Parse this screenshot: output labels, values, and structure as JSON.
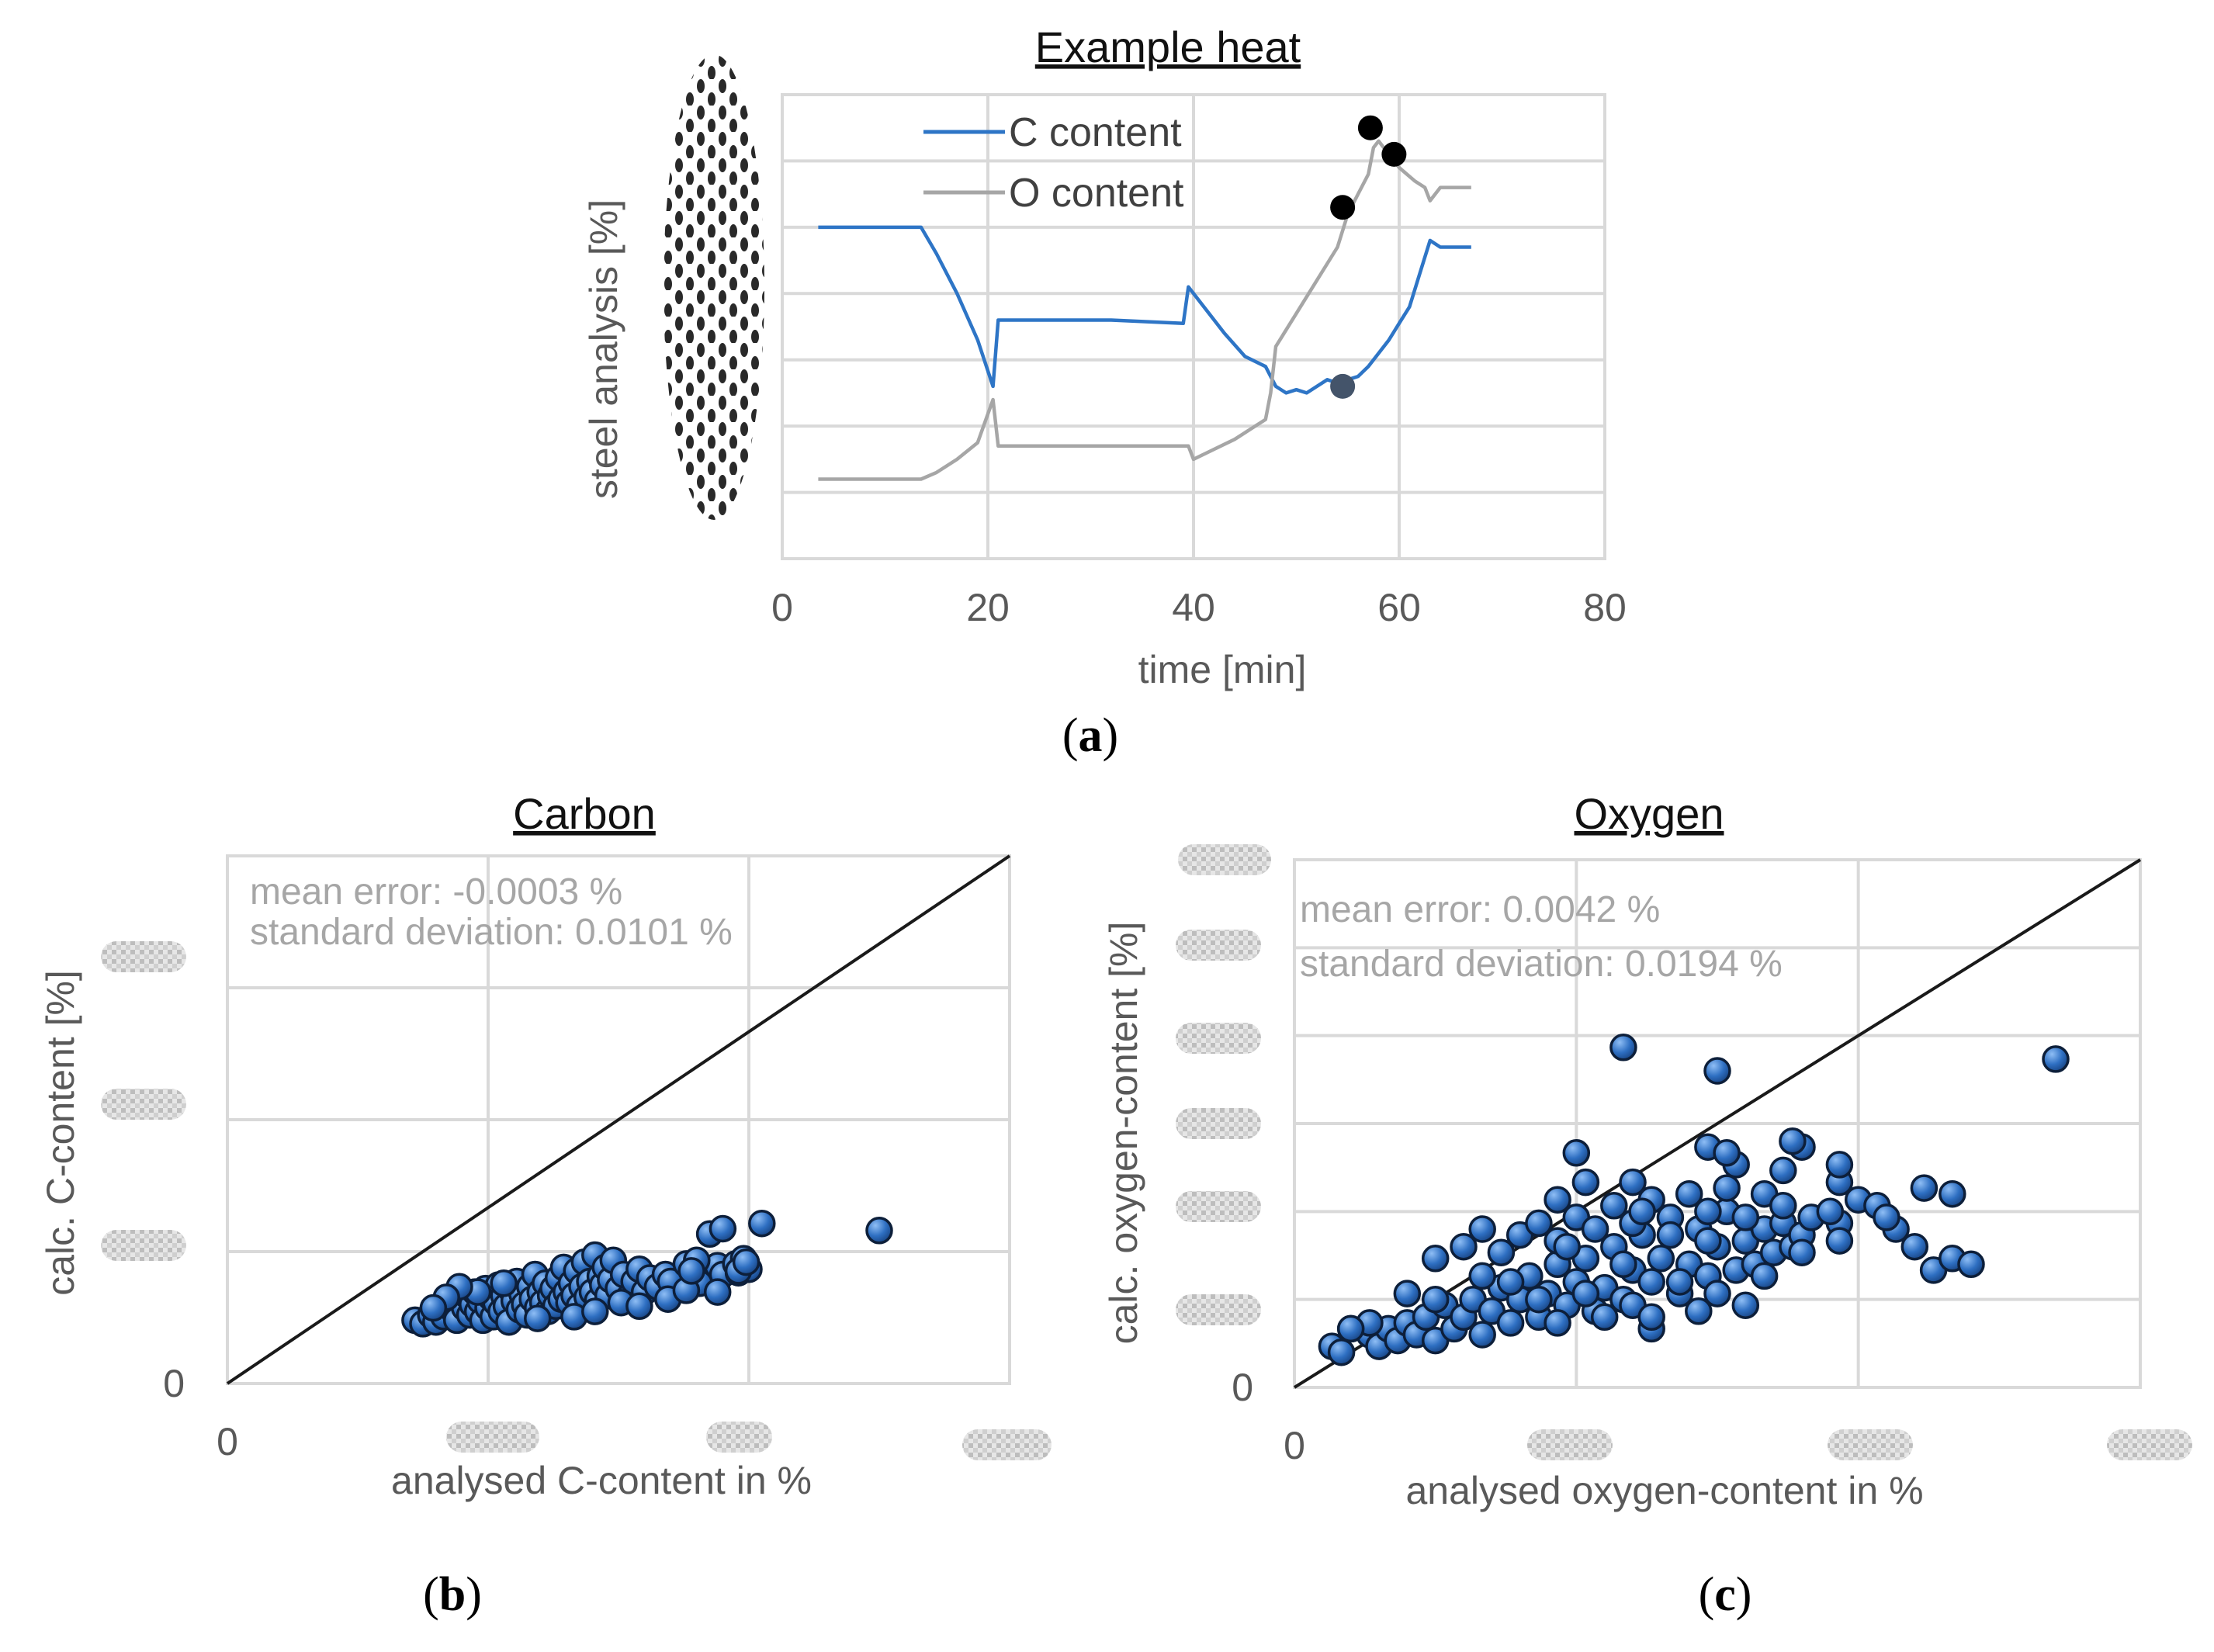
{
  "figure": {
    "captions": [
      "a",
      "b",
      "c"
    ]
  },
  "chart_data": [
    {
      "id": "a",
      "type": "line",
      "title": "Example heat",
      "xlabel": "time [min]",
      "ylabel": "steel analysis [%]",
      "xlim": [
        0,
        80
      ],
      "ylim": [
        0,
        7
      ],
      "x_ticks": [
        "0",
        "20",
        "40",
        "60",
        "80"
      ],
      "y_tick_labels_obscured": true,
      "grid": true,
      "legend": "top-left",
      "series": [
        {
          "name": "C content",
          "color": "#2e75c6",
          "points": [
            [
              3.5,
              5.0
            ],
            [
              13.5,
              5.0
            ],
            [
              15,
              4.6
            ],
            [
              17,
              4.0
            ],
            [
              19,
              3.3
            ],
            [
              20.5,
              2.6
            ],
            [
              21,
              3.6
            ],
            [
              32,
              3.6
            ],
            [
              39,
              3.55
            ],
            [
              39.5,
              4.1
            ],
            [
              41,
              3.8
            ],
            [
              43,
              3.4
            ],
            [
              45,
              3.05
            ],
            [
              47,
              2.9
            ],
            [
              48,
              2.6
            ],
            [
              49,
              2.5
            ],
            [
              50,
              2.55
            ],
            [
              51,
              2.5
            ],
            [
              52,
              2.6
            ],
            [
              53,
              2.7
            ],
            [
              54,
              2.65
            ],
            [
              55,
              2.7
            ],
            [
              56,
              2.75
            ],
            [
              57,
              2.9
            ],
            [
              58,
              3.1
            ],
            [
              59,
              3.3
            ],
            [
              60,
              3.55
            ],
            [
              61,
              3.8
            ],
            [
              62,
              4.3
            ],
            [
              63,
              4.8
            ],
            [
              64,
              4.7
            ],
            [
              67,
              4.7
            ]
          ]
        },
        {
          "name": "O content",
          "color": "#a6a6a6",
          "points": [
            [
              3.5,
              1.2
            ],
            [
              13.5,
              1.2
            ],
            [
              15,
              1.3
            ],
            [
              17,
              1.5
            ],
            [
              19,
              1.75
            ],
            [
              20.5,
              2.4
            ],
            [
              21,
              1.7
            ],
            [
              32,
              1.7
            ],
            [
              39.5,
              1.7
            ],
            [
              40,
              1.5
            ],
            [
              42,
              1.65
            ],
            [
              44,
              1.8
            ],
            [
              46,
              2.0
            ],
            [
              47,
              2.1
            ],
            [
              47.5,
              2.5
            ],
            [
              48,
              3.2
            ],
            [
              50,
              3.7
            ],
            [
              52,
              4.2
            ],
            [
              54,
              4.7
            ],
            [
              55,
              5.2
            ],
            [
              56,
              5.5
            ],
            [
              57,
              5.8
            ],
            [
              57.5,
              6.2
            ],
            [
              58,
              6.3
            ],
            [
              59,
              6.1
            ],
            [
              60,
              5.9
            ],
            [
              61.5,
              5.7
            ],
            [
              62.5,
              5.6
            ],
            [
              63,
              5.4
            ],
            [
              64,
              5.6
            ],
            [
              67,
              5.6
            ]
          ]
        }
      ],
      "markers": [
        {
          "x": 54.5,
          "y": 5.3,
          "color": "#000000"
        },
        {
          "x": 57.2,
          "y": 6.5,
          "color": "#000000"
        },
        {
          "x": 59.5,
          "y": 6.1,
          "color": "#000000"
        },
        {
          "x": 54.5,
          "y": 2.6,
          "color": "#44546a"
        }
      ]
    },
    {
      "id": "b",
      "type": "scatter",
      "title": "Carbon",
      "xlabel": "analysed C-content in %",
      "ylabel": "calc. C-content [%]",
      "xlim": [
        0,
        0.3
      ],
      "ylim": [
        0,
        0.3
      ],
      "x_tick_zero": "0",
      "y_tick_zero": "0",
      "other_tick_labels_obscured": true,
      "annotations": [
        "mean error: -0.0003 %",
        "standard deviation: 0.0101 %"
      ],
      "diagonal": true,
      "marker_color": "#2e6fc2",
      "points": [
        [
          0.072,
          0.036
        ],
        [
          0.075,
          0.034
        ],
        [
          0.078,
          0.039
        ],
        [
          0.08,
          0.035
        ],
        [
          0.082,
          0.042
        ],
        [
          0.083,
          0.038
        ],
        [
          0.085,
          0.046
        ],
        [
          0.087,
          0.041
        ],
        [
          0.088,
          0.036
        ],
        [
          0.09,
          0.048
        ],
        [
          0.091,
          0.043
        ],
        [
          0.092,
          0.05
        ],
        [
          0.093,
          0.039
        ],
        [
          0.094,
          0.045
        ],
        [
          0.095,
          0.052
        ],
        [
          0.096,
          0.041
        ],
        [
          0.097,
          0.047
        ],
        [
          0.098,
          0.036
        ],
        [
          0.099,
          0.054
        ],
        [
          0.1,
          0.043
        ],
        [
          0.101,
          0.049
        ],
        [
          0.102,
          0.038
        ],
        [
          0.103,
          0.046
        ],
        [
          0.104,
          0.056
        ],
        [
          0.105,
          0.041
        ],
        [
          0.106,
          0.05
        ],
        [
          0.107,
          0.044
        ],
        [
          0.108,
          0.035
        ],
        [
          0.109,
          0.053
        ],
        [
          0.11,
          0.047
        ],
        [
          0.111,
          0.058
        ],
        [
          0.112,
          0.042
        ],
        [
          0.113,
          0.051
        ],
        [
          0.114,
          0.045
        ],
        [
          0.115,
          0.039
        ],
        [
          0.116,
          0.055
        ],
        [
          0.117,
          0.048
        ],
        [
          0.118,
          0.062
        ],
        [
          0.119,
          0.043
        ],
        [
          0.12,
          0.052
        ],
        [
          0.121,
          0.046
        ],
        [
          0.122,
          0.057
        ],
        [
          0.123,
          0.041
        ],
        [
          0.124,
          0.05
        ],
        [
          0.125,
          0.054
        ],
        [
          0.126,
          0.044
        ],
        [
          0.127,
          0.06
        ],
        [
          0.128,
          0.048
        ],
        [
          0.129,
          0.066
        ],
        [
          0.13,
          0.052
        ],
        [
          0.131,
          0.046
        ],
        [
          0.132,
          0.057
        ],
        [
          0.133,
          0.05
        ],
        [
          0.134,
          0.064
        ],
        [
          0.135,
          0.044
        ],
        [
          0.136,
          0.055
        ],
        [
          0.137,
          0.069
        ],
        [
          0.138,
          0.049
        ],
        [
          0.139,
          0.058
        ],
        [
          0.14,
          0.052
        ],
        [
          0.141,
          0.073
        ],
        [
          0.142,
          0.047
        ],
        [
          0.143,
          0.061
        ],
        [
          0.144,
          0.056
        ],
        [
          0.145,
          0.066
        ],
        [
          0.146,
          0.05
        ],
        [
          0.147,
          0.059
        ],
        [
          0.148,
          0.07
        ],
        [
          0.15,
          0.054
        ],
        [
          0.152,
          0.062
        ],
        [
          0.154,
          0.049
        ],
        [
          0.156,
          0.058
        ],
        [
          0.158,
          0.065
        ],
        [
          0.16,
          0.052
        ],
        [
          0.162,
          0.06
        ],
        [
          0.165,
          0.055
        ],
        [
          0.168,
          0.062
        ],
        [
          0.17,
          0.058
        ],
        [
          0.096,
          0.052
        ],
        [
          0.106,
          0.057
        ],
        [
          0.119,
          0.037
        ],
        [
          0.133,
          0.038
        ],
        [
          0.141,
          0.041
        ],
        [
          0.089,
          0.055
        ],
        [
          0.084,
          0.049
        ],
        [
          0.079,
          0.043
        ],
        [
          0.151,
          0.046
        ],
        [
          0.158,
          0.044
        ],
        [
          0.176,
          0.068
        ],
        [
          0.181,
          0.057
        ],
        [
          0.185,
          0.085
        ],
        [
          0.188,
          0.067
        ],
        [
          0.19,
          0.062
        ],
        [
          0.195,
          0.068
        ],
        [
          0.198,
          0.071
        ],
        [
          0.196,
          0.063
        ],
        [
          0.2,
          0.065
        ],
        [
          0.18,
          0.07
        ],
        [
          0.169,
          0.048
        ],
        [
          0.176,
          0.053
        ],
        [
          0.178,
          0.064
        ],
        [
          0.188,
          0.052
        ],
        [
          0.196,
          0.064
        ],
        [
          0.19,
          0.088
        ],
        [
          0.205,
          0.091
        ],
        [
          0.199,
          0.069
        ],
        [
          0.25,
          0.087
        ]
      ]
    },
    {
      "id": "c",
      "type": "scatter",
      "title": "Oxygen",
      "xlabel": "analysed oxygen-content in %",
      "ylabel": "calc. oxygen-content [%]",
      "xlim": [
        0,
        0.09
      ],
      "ylim": [
        0,
        0.09
      ],
      "x_tick_zero": "0",
      "y_tick_zero": "0",
      "other_tick_labels_obscured": true,
      "annotations": [
        "mean error: 0.0042 %",
        "standard deviation: 0.0194 %"
      ],
      "diagonal": true,
      "marker_color": "#2e6fc2",
      "points": [
        [
          0.004,
          0.007
        ],
        [
          0.005,
          0.006
        ],
        [
          0.006,
          0.01
        ],
        [
          0.008,
          0.009
        ],
        [
          0.009,
          0.007
        ],
        [
          0.01,
          0.01
        ],
        [
          0.011,
          0.008
        ],
        [
          0.012,
          0.011
        ],
        [
          0.013,
          0.009
        ],
        [
          0.014,
          0.012
        ],
        [
          0.015,
          0.008
        ],
        [
          0.016,
          0.014
        ],
        [
          0.017,
          0.01
        ],
        [
          0.018,
          0.012
        ],
        [
          0.019,
          0.015
        ],
        [
          0.02,
          0.009
        ],
        [
          0.021,
          0.013
        ],
        [
          0.022,
          0.017
        ],
        [
          0.023,
          0.011
        ],
        [
          0.024,
          0.015
        ],
        [
          0.025,
          0.019
        ],
        [
          0.026,
          0.012
        ],
        [
          0.027,
          0.016
        ],
        [
          0.028,
          0.021
        ],
        [
          0.029,
          0.014
        ],
        [
          0.03,
          0.018
        ],
        [
          0.031,
          0.022
        ],
        [
          0.032,
          0.013
        ],
        [
          0.033,
          0.017
        ],
        [
          0.034,
          0.024
        ],
        [
          0.035,
          0.015
        ],
        [
          0.036,
          0.02
        ],
        [
          0.037,
          0.026
        ],
        [
          0.038,
          0.018
        ],
        [
          0.039,
          0.022
        ],
        [
          0.04,
          0.029
        ],
        [
          0.041,
          0.016
        ],
        [
          0.042,
          0.021
        ],
        [
          0.043,
          0.027
        ],
        [
          0.044,
          0.019
        ],
        [
          0.045,
          0.024
        ],
        [
          0.046,
          0.03
        ],
        [
          0.047,
          0.02
        ],
        [
          0.048,
          0.025
        ],
        [
          0.049,
          0.021
        ],
        [
          0.05,
          0.027
        ],
        [
          0.051,
          0.023
        ],
        [
          0.052,
          0.028
        ],
        [
          0.053,
          0.024
        ],
        [
          0.054,
          0.026
        ],
        [
          0.012,
          0.016
        ],
        [
          0.015,
          0.022
        ],
        [
          0.018,
          0.024
        ],
        [
          0.02,
          0.019
        ],
        [
          0.022,
          0.023
        ],
        [
          0.024,
          0.026
        ],
        [
          0.026,
          0.028
        ],
        [
          0.028,
          0.025
        ],
        [
          0.03,
          0.029
        ],
        [
          0.032,
          0.027
        ],
        [
          0.034,
          0.031
        ],
        [
          0.036,
          0.028
        ],
        [
          0.038,
          0.032
        ],
        [
          0.04,
          0.026
        ],
        [
          0.042,
          0.033
        ],
        [
          0.044,
          0.03
        ],
        [
          0.046,
          0.034
        ],
        [
          0.048,
          0.029
        ],
        [
          0.05,
          0.033
        ],
        [
          0.052,
          0.031
        ],
        [
          0.055,
          0.029
        ],
        [
          0.058,
          0.028
        ],
        [
          0.06,
          0.032
        ],
        [
          0.062,
          0.031
        ],
        [
          0.064,
          0.027
        ],
        [
          0.066,
          0.024
        ],
        [
          0.068,
          0.02
        ],
        [
          0.07,
          0.022
        ],
        [
          0.072,
          0.021
        ],
        [
          0.028,
          0.011
        ],
        [
          0.033,
          0.012
        ],
        [
          0.038,
          0.01
        ],
        [
          0.043,
          0.013
        ],
        [
          0.048,
          0.014
        ],
        [
          0.023,
          0.018
        ],
        [
          0.041,
          0.018
        ],
        [
          0.058,
          0.025
        ],
        [
          0.036,
          0.035
        ],
        [
          0.047,
          0.038
        ],
        [
          0.054,
          0.041
        ],
        [
          0.058,
          0.035
        ],
        [
          0.063,
          0.029
        ],
        [
          0.036,
          0.014
        ],
        [
          0.045,
          0.016
        ],
        [
          0.026,
          0.015
        ],
        [
          0.031,
          0.016
        ],
        [
          0.05,
          0.019
        ],
        [
          0.038,
          0.012
        ],
        [
          0.029,
          0.024
        ],
        [
          0.03,
          0.04
        ],
        [
          0.044,
          0.041
        ],
        [
          0.053,
          0.042
        ],
        [
          0.052,
          0.037
        ],
        [
          0.057,
          0.03
        ],
        [
          0.067,
          0.034
        ],
        [
          0.02,
          0.027
        ],
        [
          0.015,
          0.015
        ],
        [
          0.044,
          0.025
        ],
        [
          0.028,
          0.032
        ],
        [
          0.037,
          0.03
        ],
        [
          0.035,
          0.021
        ],
        [
          0.031,
          0.035
        ],
        [
          0.046,
          0.04
        ],
        [
          0.058,
          0.038
        ],
        [
          0.035,
          0.058
        ],
        [
          0.045,
          0.054
        ],
        [
          0.081,
          0.056
        ],
        [
          0.054,
          0.023
        ],
        [
          0.07,
          0.033
        ],
        [
          0.008,
          0.011
        ],
        [
          0.006,
          0.01
        ]
      ]
    }
  ]
}
